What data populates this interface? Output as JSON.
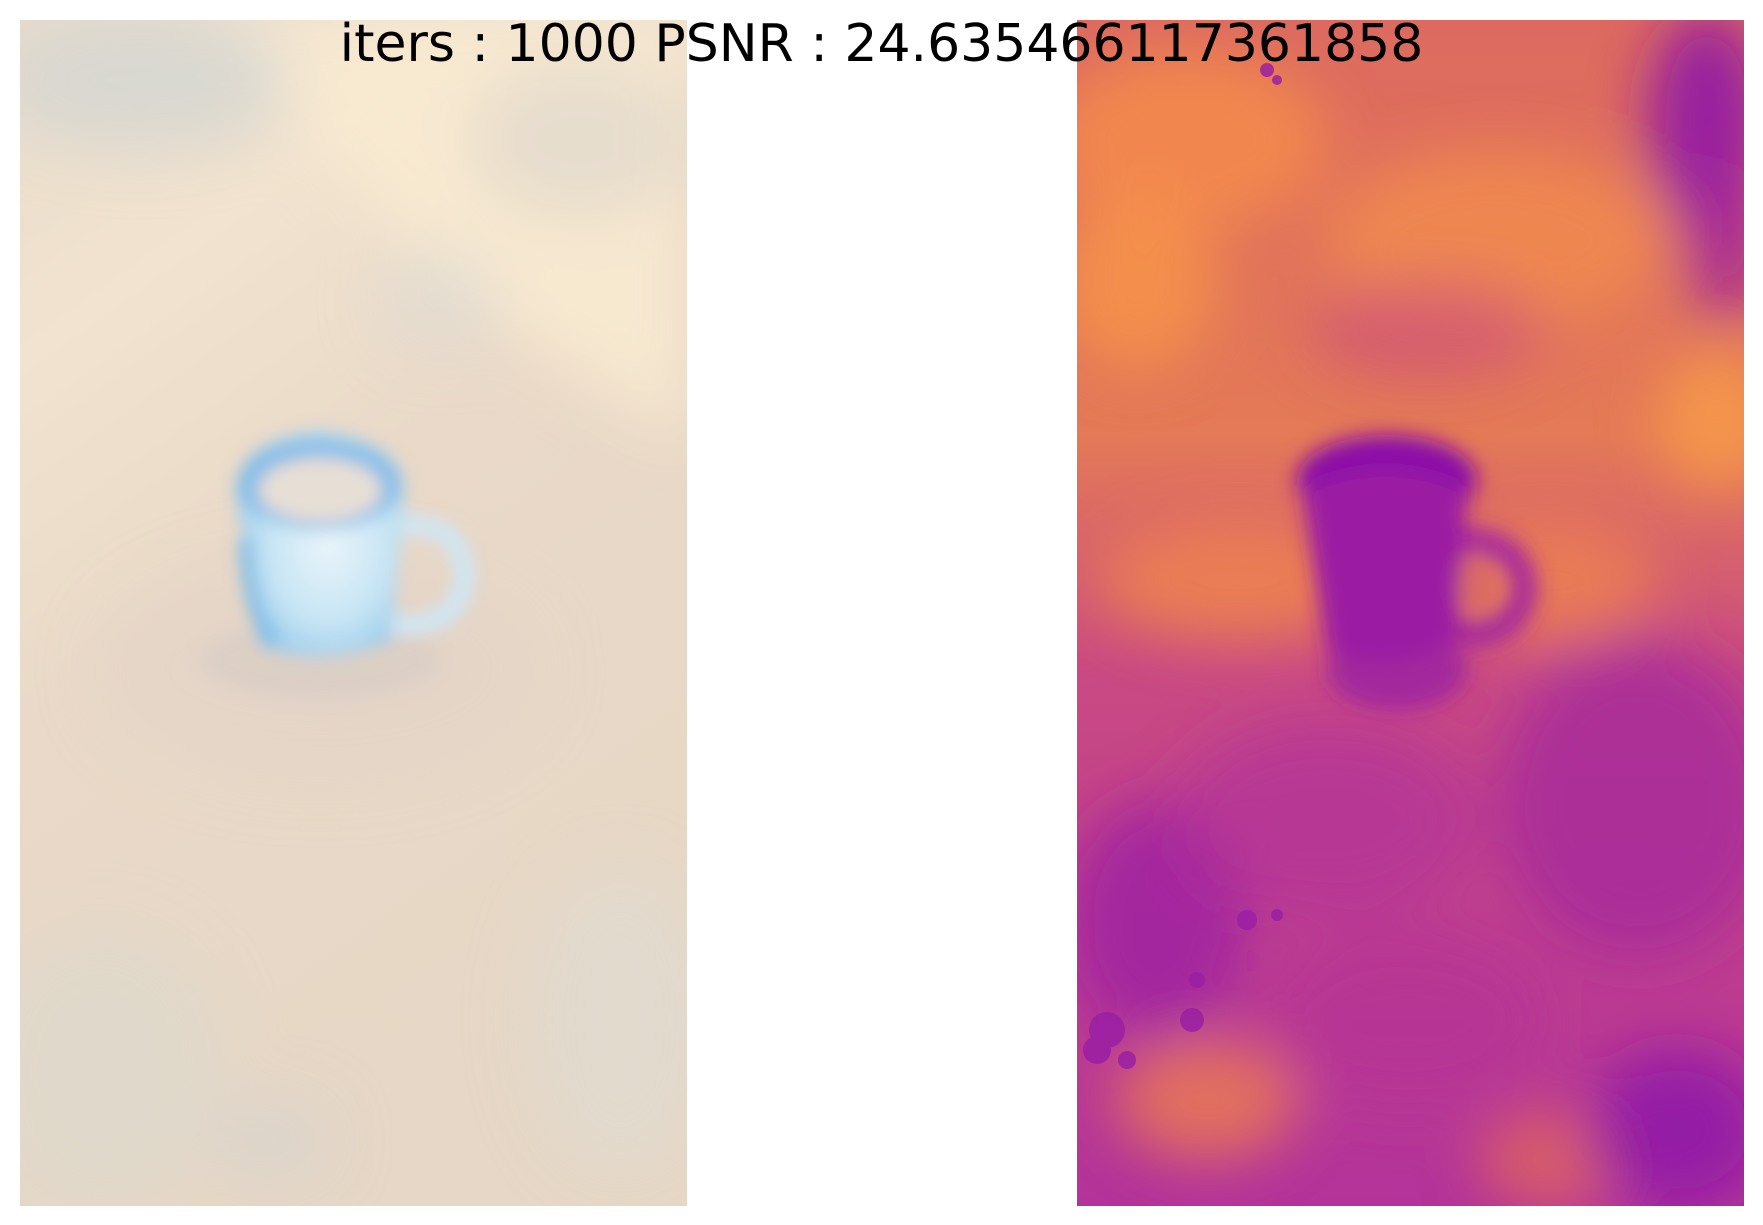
{
  "figure": {
    "title": "iters : 1000 PSNR : 24.635466117361858"
  },
  "panels": [
    {
      "content": "rgb-render",
      "subject": "mug"
    },
    {
      "content": "depth-map",
      "colormap": "plasma"
    }
  ],
  "colors": {
    "background": "#ffffff",
    "title_text": "#000000",
    "rgb_base": "#ecdccb",
    "rgb_highlight": "#f6e8d0",
    "mug_color": "#a9d4ef",
    "depth_far": "#f08552",
    "depth_near": "#8c12a8",
    "depth_mid": "#c23f8a"
  }
}
